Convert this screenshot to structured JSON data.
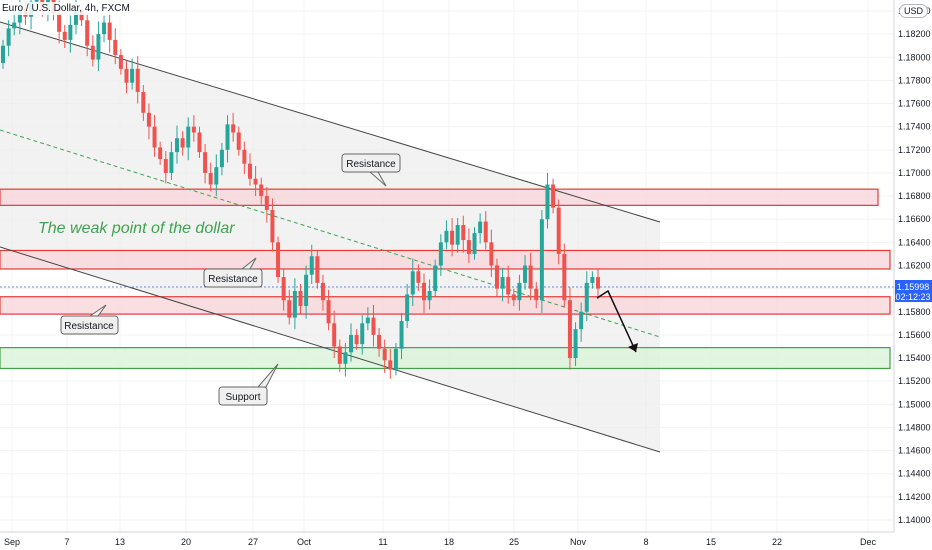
{
  "header": {
    "symbol_title": "Euro / U.S. Dollar, 4h, FXCM",
    "currency_badge": "USD"
  },
  "price_tag": {
    "price": "1.15998",
    "countdown": "02:12:23"
  },
  "colors": {
    "bull": "#26a69a",
    "bear": "#ef5350",
    "resistance_fill": "#f8d7da",
    "resistance_border": "#e53935",
    "support_fill": "#d9f2d9",
    "support_border": "#43a047",
    "channel_fill": "#eeeeee",
    "price_tag": "#2962ff",
    "annotation_text": "#3fa34d"
  },
  "annotations": {
    "headline": "The weak point of the dollar",
    "callouts": [
      "Resistance",
      "Resistance",
      "Resistance",
      "Support"
    ]
  },
  "chart_data": {
    "type": "candlestick",
    "x_axis_labels": [
      "Sep",
      "7",
      "13",
      "20",
      "27",
      "Oct",
      "11",
      "18",
      "25",
      "Nov",
      "8",
      "15",
      "22",
      "Dec"
    ],
    "y_axis_ticks": [
      "1.18400",
      "1.18200",
      "1.18000",
      "1.17800",
      "1.17600",
      "1.17400",
      "1.17200",
      "1.17000",
      "1.16800",
      "1.16600",
      "1.16400",
      "1.16200",
      "1.16000",
      "1.15800",
      "1.15600",
      "1.15400",
      "1.15200",
      "1.15000",
      "1.14800",
      "1.14600",
      "1.14400",
      "1.14200",
      "1.14000"
    ],
    "ylim": [
      1.1395,
      1.1855
    ],
    "zones": [
      {
        "kind": "resistance",
        "low": 1.1672,
        "high": 1.1686
      },
      {
        "kind": "resistance",
        "low": 1.1617,
        "high": 1.1633
      },
      {
        "kind": "resistance",
        "low": 1.1578,
        "high": 1.1593
      },
      {
        "kind": "support",
        "low": 1.1531,
        "high": 1.1549
      }
    ],
    "closes": [
      1.181,
      1.1825,
      1.183,
      1.1842,
      1.1835,
      1.1848,
      1.1851,
      1.184,
      1.1852,
      1.1838,
      1.1822,
      1.1815,
      1.1828,
      1.184,
      1.1832,
      1.181,
      1.1798,
      1.182,
      1.183,
      1.1815,
      1.1802,
      1.179,
      1.1778,
      1.179,
      1.177,
      1.1752,
      1.174,
      1.1722,
      1.1712,
      1.17,
      1.1718,
      1.173,
      1.1722,
      1.174,
      1.1735,
      1.1718,
      1.17,
      1.169,
      1.1705,
      1.172,
      1.1742,
      1.1735,
      1.172,
      1.1708,
      1.1695,
      1.169,
      1.168,
      1.1668,
      1.164,
      1.161,
      1.159,
      1.1575,
      1.1598,
      1.1585,
      1.1612,
      1.1628,
      1.1605,
      1.159,
      1.157,
      1.155,
      1.1535,
      1.1545,
      1.156,
      1.1552,
      1.157,
      1.1575,
      1.156,
      1.1548,
      1.1538,
      1.153,
      1.1548,
      1.1572,
      1.1595,
      1.1615,
      1.1605,
      1.159,
      1.1598,
      1.162,
      1.164,
      1.165,
      1.1638,
      1.1655,
      1.1642,
      1.163,
      1.1648,
      1.1658,
      1.164,
      1.162,
      1.16,
      1.161,
      1.1595,
      1.159,
      1.1605,
      1.162,
      1.16,
      1.159,
      1.166,
      1.169,
      1.167,
      1.163,
      1.159,
      1.154,
      1.1565,
      1.158,
      1.1605,
      1.161,
      1.16
    ]
  }
}
